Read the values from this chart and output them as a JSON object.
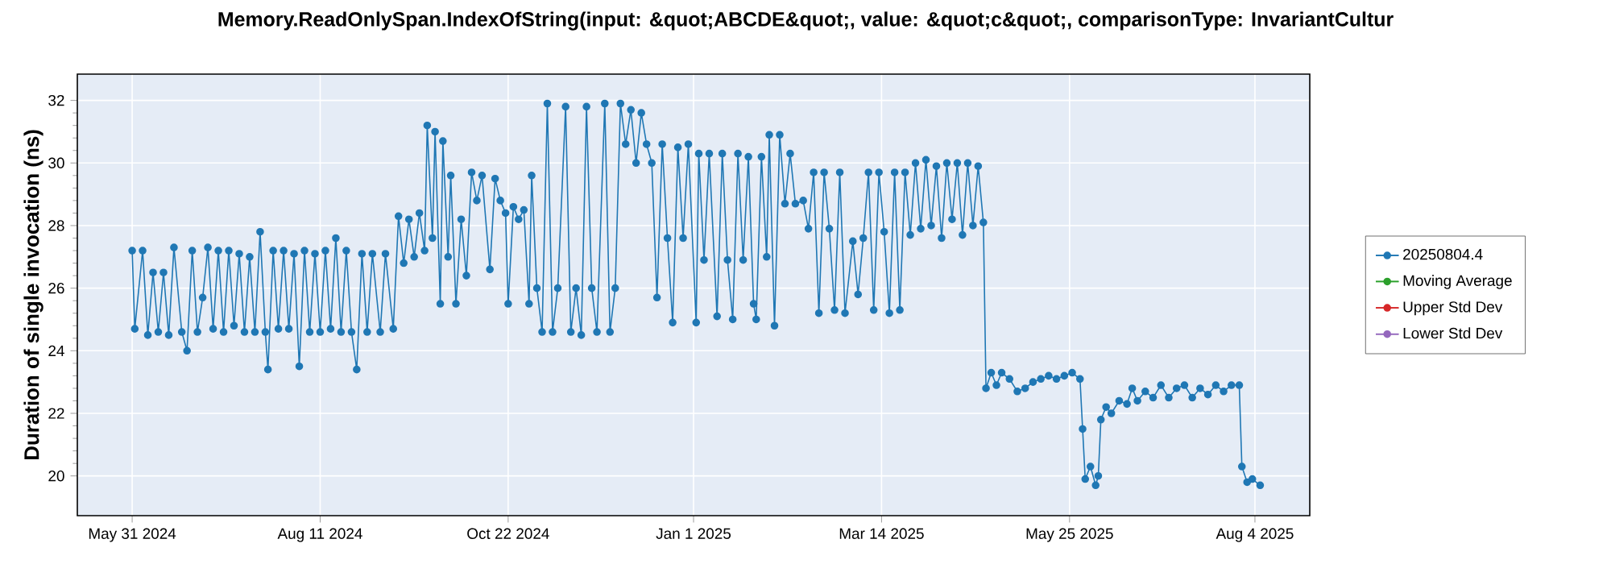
{
  "chart_data": {
    "type": "line",
    "title": "Memory.ReadOnlySpan.IndexOfString(input: &quot;ABCDE&quot;, value: &quot;c&quot;, comparisonType: InvariantCultur",
    "ylabel": "Duration of single invocation (ns)",
    "x": [
      "2024-05-31",
      "2024-06-01",
      "2024-06-04",
      "2024-06-06",
      "2024-06-08",
      "2024-06-10",
      "2024-06-12",
      "2024-06-14",
      "2024-06-16",
      "2024-06-19",
      "2024-06-21",
      "2024-06-23",
      "2024-06-25",
      "2024-06-27",
      "2024-06-29",
      "2024-07-01",
      "2024-07-03",
      "2024-07-05",
      "2024-07-07",
      "2024-07-09",
      "2024-07-11",
      "2024-07-13",
      "2024-07-15",
      "2024-07-17",
      "2024-07-19",
      "2024-07-21",
      "2024-07-22",
      "2024-07-24",
      "2024-07-26",
      "2024-07-28",
      "2024-07-30",
      "2024-08-01",
      "2024-08-03",
      "2024-08-05",
      "2024-08-07",
      "2024-08-09",
      "2024-08-11",
      "2024-08-13",
      "2024-08-15",
      "2024-08-17",
      "2024-08-19",
      "2024-08-21",
      "2024-08-23",
      "2024-08-25",
      "2024-08-27",
      "2024-08-29",
      "2024-08-31",
      "2024-09-03",
      "2024-09-05",
      "2024-09-08",
      "2024-09-10",
      "2024-09-12",
      "2024-09-14",
      "2024-09-16",
      "2024-09-18",
      "2024-09-20",
      "2024-09-21",
      "2024-09-23",
      "2024-09-24",
      "2024-09-26",
      "2024-09-27",
      "2024-09-29",
      "2024-09-30",
      "2024-10-02",
      "2024-10-04",
      "2024-10-06",
      "2024-10-08",
      "2024-10-10",
      "2024-10-12",
      "2024-10-15",
      "2024-10-17",
      "2024-10-19",
      "2024-10-21",
      "2024-10-22",
      "2024-10-24",
      "2024-10-26",
      "2024-10-28",
      "2024-10-30",
      "2024-10-31",
      "2024-11-02",
      "2024-11-04",
      "2024-11-06",
      "2024-11-08",
      "2024-11-10",
      "2024-11-13",
      "2024-11-15",
      "2024-11-17",
      "2024-11-19",
      "2024-11-21",
      "2024-11-23",
      "2024-11-25",
      "2024-11-28",
      "2024-11-30",
      "2024-12-02",
      "2024-12-04",
      "2024-12-06",
      "2024-12-08",
      "2024-12-10",
      "2024-12-12",
      "2024-12-14",
      "2024-12-16",
      "2024-12-18",
      "2024-12-20",
      "2024-12-22",
      "2024-12-24",
      "2024-12-26",
      "2024-12-28",
      "2024-12-30",
      "2025-01-02",
      "2025-01-03",
      "2025-01-05",
      "2025-01-07",
      "2025-01-10",
      "2025-01-12",
      "2025-01-14",
      "2025-01-16",
      "2025-01-18",
      "2025-01-20",
      "2025-01-22",
      "2025-01-24",
      "2025-01-25",
      "2025-01-27",
      "2025-01-29",
      "2025-01-30",
      "2025-02-01",
      "2025-02-03",
      "2025-02-05",
      "2025-02-07",
      "2025-02-09",
      "2025-02-12",
      "2025-02-14",
      "2025-02-16",
      "2025-02-18",
      "2025-02-20",
      "2025-02-22",
      "2025-02-24",
      "2025-02-26",
      "2025-02-28",
      "2025-03-03",
      "2025-03-05",
      "2025-03-07",
      "2025-03-09",
      "2025-03-11",
      "2025-03-13",
      "2025-03-15",
      "2025-03-17",
      "2025-03-19",
      "2025-03-21",
      "2025-03-23",
      "2025-03-25",
      "2025-03-27",
      "2025-03-29",
      "2025-03-31",
      "2025-04-02",
      "2025-04-04",
      "2025-04-06",
      "2025-04-08",
      "2025-04-10",
      "2025-04-12",
      "2025-04-14",
      "2025-04-16",
      "2025-04-18",
      "2025-04-20",
      "2025-04-22",
      "2025-04-23",
      "2025-04-25",
      "2025-04-27",
      "2025-04-29",
      "2025-05-02",
      "2025-05-05",
      "2025-05-08",
      "2025-05-11",
      "2025-05-14",
      "2025-05-17",
      "2025-05-20",
      "2025-05-23",
      "2025-05-26",
      "2025-05-29",
      "2025-05-30",
      "2025-05-31",
      "2025-06-02",
      "2025-06-04",
      "2025-06-05",
      "2025-06-06",
      "2025-06-08",
      "2025-06-10",
      "2025-06-13",
      "2025-06-16",
      "2025-06-18",
      "2025-06-20",
      "2025-06-23",
      "2025-06-26",
      "2025-06-29",
      "2025-07-02",
      "2025-07-05",
      "2025-07-08",
      "2025-07-11",
      "2025-07-14",
      "2025-07-17",
      "2025-07-20",
      "2025-07-23",
      "2025-07-26",
      "2025-07-29",
      "2025-07-30",
      "2025-08-01",
      "2025-08-03",
      "2025-08-06"
    ],
    "series": [
      {
        "name": "20250804.4",
        "color": "#1f77b4",
        "values": [
          27.2,
          24.7,
          27.2,
          24.5,
          26.5,
          24.6,
          26.5,
          24.5,
          27.3,
          24.6,
          24.0,
          27.2,
          24.6,
          25.7,
          27.3,
          24.7,
          27.2,
          24.6,
          27.2,
          24.8,
          27.1,
          24.6,
          27.0,
          24.6,
          27.8,
          24.6,
          23.4,
          27.2,
          24.7,
          27.2,
          24.7,
          27.1,
          23.5,
          27.2,
          24.6,
          27.1,
          24.6,
          27.2,
          24.7,
          27.6,
          24.6,
          27.2,
          24.6,
          23.4,
          27.1,
          24.6,
          27.1,
          24.6,
          27.1,
          24.7,
          28.3,
          26.8,
          28.2,
          27.0,
          28.4,
          27.2,
          31.2,
          27.6,
          31.0,
          25.5,
          30.7,
          27.0,
          29.6,
          25.5,
          28.2,
          26.4,
          29.7,
          28.8,
          29.6,
          26.6,
          29.5,
          28.8,
          28.4,
          25.5,
          28.6,
          28.2,
          28.5,
          25.5,
          29.6,
          26.0,
          24.6,
          31.9,
          24.6,
          26.0,
          31.8,
          24.6,
          26.0,
          24.5,
          31.8,
          26.0,
          24.6,
          31.9,
          24.6,
          26.0,
          31.9,
          30.6,
          31.7,
          30.0,
          31.6,
          30.6,
          30.0,
          25.7,
          30.6,
          27.6,
          24.9,
          30.5,
          27.6,
          30.6,
          24.9,
          30.3,
          26.9,
          30.3,
          25.1,
          30.3,
          26.9,
          25.0,
          30.3,
          26.9,
          30.2,
          25.5,
          25.0,
          30.2,
          27.0,
          30.9,
          24.8,
          30.9,
          28.7,
          30.3,
          28.7,
          28.8,
          27.9,
          29.7,
          25.2,
          29.7,
          27.9,
          25.3,
          29.7,
          25.2,
          27.5,
          25.8,
          27.6,
          29.7,
          25.3,
          29.7,
          27.8,
          25.2,
          29.7,
          25.3,
          29.7,
          27.7,
          30.0,
          27.9,
          30.1,
          28.0,
          29.9,
          27.6,
          30.0,
          28.2,
          30.0,
          27.7,
          30.0,
          28.0,
          29.9,
          28.1,
          22.8,
          23.3,
          22.9,
          23.3,
          23.1,
          22.7,
          22.8,
          23.0,
          23.1,
          23.2,
          23.1,
          23.2,
          23.3,
          23.1,
          21.5,
          19.9,
          20.3,
          19.7,
          20.0,
          21.8,
          22.2,
          22.0,
          22.4,
          22.3,
          22.8,
          22.4,
          22.7,
          22.5,
          22.9,
          22.5,
          22.8,
          22.9,
          22.5,
          22.8,
          22.6,
          22.9,
          22.7,
          22.9,
          22.9,
          20.3,
          19.8,
          19.9,
          19.7
        ]
      },
      {
        "name": "Moving Average",
        "color": "#2ca02c",
        "values": [
          null,
          null,
          null,
          null,
          null,
          null,
          null,
          null,
          null,
          null,
          null,
          null,
          null,
          null,
          null,
          null,
          null,
          null,
          null,
          null,
          null,
          null,
          null,
          null,
          null,
          null,
          null,
          null,
          null,
          null,
          null,
          null,
          null,
          null,
          null,
          null,
          null,
          null,
          null,
          null,
          null,
          null,
          null,
          null,
          null,
          null,
          null,
          null,
          null,
          null,
          null,
          null,
          null,
          null,
          null,
          null,
          null,
          null,
          null,
          null,
          null,
          null,
          null,
          null,
          null,
          null,
          null,
          null,
          null,
          null,
          null,
          null,
          null,
          null,
          null,
          null,
          null,
          null,
          null,
          null,
          null,
          null,
          null,
          null,
          null,
          null,
          null,
          null,
          null,
          null,
          null,
          null,
          null,
          null,
          null,
          null,
          null,
          null,
          null,
          null,
          null,
          null,
          null,
          null,
          null,
          null,
          null,
          null,
          null,
          null,
          null,
          null,
          null,
          null,
          null,
          null,
          null,
          null,
          null,
          null,
          null,
          null,
          null,
          null,
          null,
          null,
          null,
          null,
          null,
          null,
          null,
          null,
          null,
          null,
          null,
          null,
          null,
          null,
          null,
          null,
          null,
          null,
          null,
          null,
          null,
          null,
          null,
          null,
          null,
          null,
          null,
          null,
          null,
          null,
          null,
          null,
          null,
          null,
          null,
          null,
          null,
          null,
          null,
          null,
          null,
          null,
          null,
          null,
          null,
          null,
          null,
          null,
          null,
          null,
          null,
          null,
          null,
          null,
          null,
          null,
          null,
          null,
          null,
          null,
          null,
          null,
          null,
          null,
          null,
          null,
          null,
          null,
          null,
          null,
          null,
          null,
          null,
          null,
          null,
          null,
          null,
          null,
          null,
          null,
          null,
          null,
          null
        ]
      },
      {
        "name": "Upper Std Dev",
        "color": "#d62728",
        "values": [
          null,
          null,
          null,
          null,
          null,
          null,
          null,
          null,
          null,
          null,
          null,
          null,
          null,
          null,
          null,
          null,
          null,
          null,
          null,
          null,
          null,
          null,
          null,
          null,
          null,
          null,
          null,
          null,
          null,
          null,
          null,
          null,
          null,
          null,
          null,
          null,
          null,
          null,
          null,
          null,
          null,
          null,
          null,
          null,
          null,
          null,
          null,
          null,
          null,
          null,
          null,
          null,
          null,
          null,
          null,
          null,
          null,
          null,
          null,
          null,
          null,
          null,
          null,
          null,
          null,
          null,
          null,
          null,
          null,
          null,
          null,
          null,
          null,
          null,
          null,
          null,
          null,
          null,
          null,
          null,
          null,
          null,
          null,
          null,
          null,
          null,
          null,
          null,
          null,
          null,
          null,
          null,
          null,
          null,
          null,
          null,
          null,
          null,
          null,
          null,
          null,
          null,
          null,
          null,
          null,
          null,
          null,
          null,
          null,
          null,
          null,
          null,
          null,
          null,
          null,
          null,
          null,
          null,
          null,
          null,
          null,
          null,
          null,
          null,
          null,
          null,
          null,
          null,
          null,
          null,
          null,
          null,
          null,
          null,
          null,
          null,
          null,
          null,
          null,
          null,
          null,
          null,
          null,
          null,
          null,
          null,
          null,
          null,
          null,
          null,
          null,
          null,
          null,
          null,
          null,
          null,
          null,
          null,
          null,
          null,
          null,
          null,
          null,
          null,
          null,
          null,
          null,
          null,
          null,
          null,
          null,
          null,
          null,
          null,
          null,
          null,
          null,
          null,
          null,
          null,
          null,
          null,
          null,
          null,
          null,
          null,
          null,
          null,
          null,
          null,
          null,
          null,
          null,
          null,
          null,
          null,
          null,
          null,
          null,
          null,
          null,
          null,
          null,
          null,
          null,
          null,
          null
        ]
      },
      {
        "name": "Lower Std Dev",
        "color": "#9467bd",
        "values": [
          null,
          null,
          null,
          null,
          null,
          null,
          null,
          null,
          null,
          null,
          null,
          null,
          null,
          null,
          null,
          null,
          null,
          null,
          null,
          null,
          null,
          null,
          null,
          null,
          null,
          null,
          null,
          null,
          null,
          null,
          null,
          null,
          null,
          null,
          null,
          null,
          null,
          null,
          null,
          null,
          null,
          null,
          null,
          null,
          null,
          null,
          null,
          null,
          null,
          null,
          null,
          null,
          null,
          null,
          null,
          null,
          null,
          null,
          null,
          null,
          null,
          null,
          null,
          null,
          null,
          null,
          null,
          null,
          null,
          null,
          null,
          null,
          null,
          null,
          null,
          null,
          null,
          null,
          null,
          null,
          null,
          null,
          null,
          null,
          null,
          null,
          null,
          null,
          null,
          null,
          null,
          null,
          null,
          null,
          null,
          null,
          null,
          null,
          null,
          null,
          null,
          null,
          null,
          null,
          null,
          null,
          null,
          null,
          null,
          null,
          null,
          null,
          null,
          null,
          null,
          null,
          null,
          null,
          null,
          null,
          null,
          null,
          null,
          null,
          null,
          null,
          null,
          null,
          null,
          null,
          null,
          null,
          null,
          null,
          null,
          null,
          null,
          null,
          null,
          null,
          null,
          null,
          null,
          null,
          null,
          null,
          null,
          null,
          null,
          null,
          null,
          null,
          null,
          null,
          null,
          null,
          null,
          null,
          null,
          null,
          null,
          null,
          null,
          null,
          null,
          null,
          null,
          null,
          null,
          null,
          null,
          null,
          null,
          null,
          null,
          null,
          null,
          null,
          null,
          null,
          null,
          null,
          null,
          null,
          null,
          null,
          null,
          null,
          null,
          null,
          null,
          null,
          null,
          null,
          null,
          null,
          null,
          null,
          null,
          null,
          null,
          null,
          null,
          null,
          null,
          null,
          null
        ]
      }
    ],
    "xlim": [
      "2024-05-10",
      "2025-08-25"
    ],
    "xticks": [
      {
        "value": "2024-05-31",
        "label": "May 31 2024"
      },
      {
        "value": "2024-08-11",
        "label": "Aug 11 2024"
      },
      {
        "value": "2024-10-22",
        "label": "Oct 22 2024"
      },
      {
        "value": "2025-01-01",
        "label": "Jan 1 2025"
      },
      {
        "value": "2025-03-14",
        "label": "Mar 14 2025"
      },
      {
        "value": "2025-05-25",
        "label": "May 25 2025"
      },
      {
        "value": "2025-08-04",
        "label": "Aug 4 2025"
      }
    ],
    "ylim": [
      18.73,
      32.84
    ],
    "yticks": [
      20,
      22,
      24,
      26,
      28,
      30,
      32
    ],
    "grid": true,
    "legend": "right",
    "marker": "circle",
    "line_style": "solid"
  }
}
